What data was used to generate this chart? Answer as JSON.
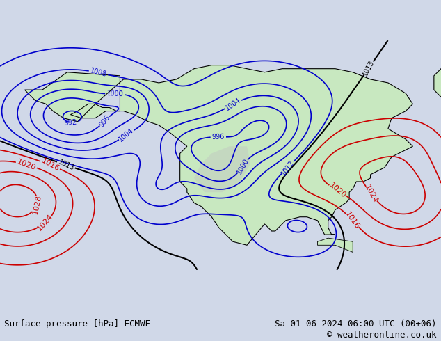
{
  "title_left": "Surface pressure [hPa] ECMWF",
  "title_right": "Sa 01-06-2024 06:00 UTC (00+06)",
  "copyright": "© weatheronline.co.uk",
  "bg_color": "#d0d8e8",
  "land_color": "#c8e8c0",
  "ocean_color": "#d0d8e8",
  "mountain_color": "#b0b0b0",
  "fig_width": 6.34,
  "fig_height": 4.9,
  "dpi": 100,
  "bottom_bar_color": "#f0f0f0",
  "bottom_bar_height": 0.09,
  "font_size_labels": 9,
  "font_size_copyright": 9,
  "isobars_blue": [
    992,
    996,
    1000,
    1004,
    1008,
    1012
  ],
  "isobars_black": [
    1013
  ],
  "isobars_red": [
    1016,
    1020,
    1024,
    1028
  ],
  "blue_color": "#0000cc",
  "black_color": "#000000",
  "red_color": "#cc0000"
}
